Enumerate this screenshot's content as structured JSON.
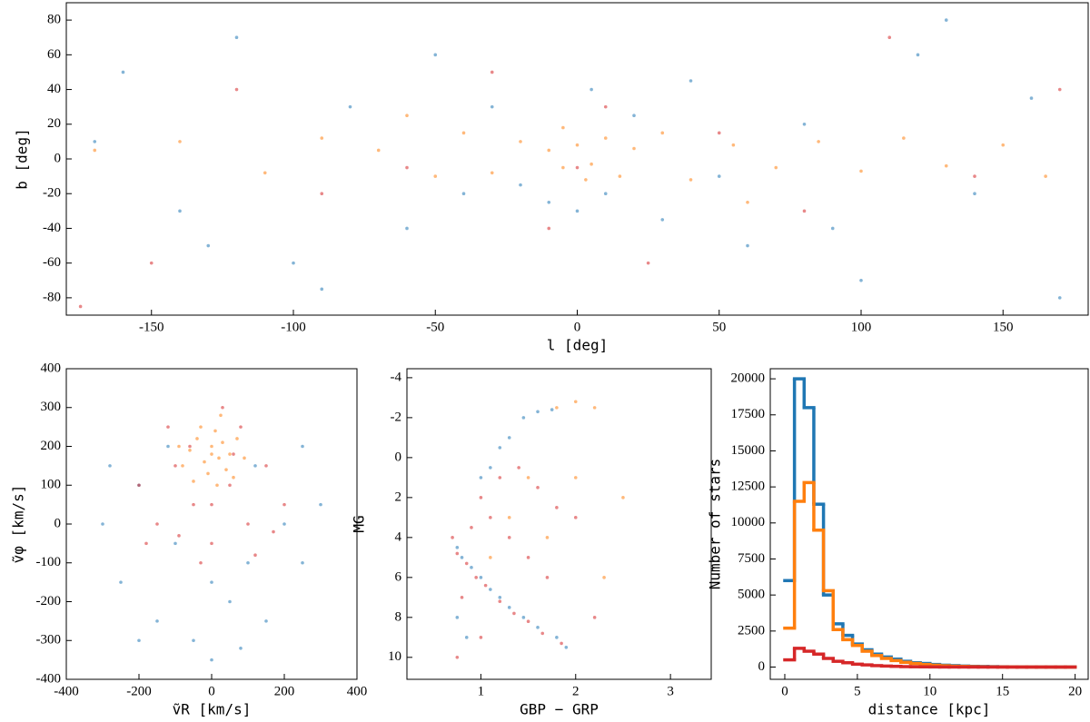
{
  "chart_data": [
    {
      "type": "scatter",
      "xlabel": "l [deg]",
      "ylabel": "b [deg]",
      "xlim": [
        -180,
        180
      ],
      "ylim": [
        -90,
        90
      ],
      "xticks": [
        -150,
        -100,
        -50,
        0,
        50,
        100,
        150
      ],
      "yticks": [
        -80,
        -60,
        -40,
        -20,
        0,
        20,
        40,
        60,
        80
      ],
      "series": [
        {
          "color": "#1f77b4",
          "x": [
            -160,
            -140,
            -120,
            -100,
            -80,
            -60,
            -40,
            -20,
            -10,
            0,
            10,
            20,
            30,
            40,
            60,
            80,
            100,
            120,
            140,
            160,
            170,
            -170,
            -50,
            50,
            -30,
            90,
            -90,
            130,
            -130,
            5
          ],
          "y": [
            50,
            -30,
            70,
            -60,
            30,
            -40,
            -20,
            -15,
            -25,
            -30,
            -20,
            25,
            -35,
            45,
            -50,
            20,
            -70,
            60,
            -20,
            35,
            -80,
            10,
            60,
            -10,
            30,
            -40,
            -75,
            80,
            -50,
            40
          ]
        },
        {
          "color": "#ff7f0e",
          "x": [
            -170,
            -140,
            -110,
            -90,
            -70,
            -50,
            -40,
            -30,
            -20,
            -10,
            -5,
            0,
            5,
            10,
            15,
            20,
            30,
            40,
            55,
            70,
            85,
            100,
            115,
            130,
            150,
            165,
            -5,
            3,
            -60,
            60
          ],
          "y": [
            5,
            10,
            -8,
            12,
            5,
            -10,
            15,
            -8,
            10,
            5,
            -5,
            8,
            -3,
            12,
            -10,
            6,
            15,
            -12,
            8,
            -5,
            10,
            -7,
            12,
            -4,
            8,
            -10,
            18,
            -12,
            25,
            -25
          ]
        },
        {
          "color": "#d62728",
          "x": [
            -150,
            -120,
            -90,
            -60,
            -30,
            -10,
            0,
            10,
            25,
            50,
            80,
            110,
            140,
            170,
            -175
          ],
          "y": [
            -60,
            40,
            -20,
            -5,
            50,
            -40,
            -5,
            30,
            -60,
            15,
            -30,
            70,
            -10,
            40,
            -85
          ]
        }
      ]
    },
    {
      "type": "scatter",
      "xlabel": "ṽR [km/s]",
      "ylabel": "ṽφ [km/s]",
      "xlim": [
        -400,
        400
      ],
      "ylim": [
        -400,
        400
      ],
      "xticks": [
        -400,
        -200,
        0,
        200,
        400
      ],
      "yticks": [
        -400,
        -300,
        -200,
        -100,
        0,
        100,
        200,
        300,
        400
      ],
      "series": [
        {
          "color": "#1f77b4",
          "x": [
            -300,
            -250,
            -200,
            -150,
            -100,
            -50,
            0,
            50,
            100,
            150,
            200,
            250,
            300,
            -200,
            0,
            120,
            -120,
            250,
            -280,
            80
          ],
          "y": [
            0,
            -150,
            100,
            -250,
            -50,
            -300,
            -150,
            -200,
            -100,
            -250,
            0,
            -100,
            50,
            -300,
            -350,
            150,
            200,
            200,
            150,
            -320
          ]
        },
        {
          "color": "#ff7f0e",
          "x": [
            -60,
            -40,
            -20,
            0,
            10,
            20,
            30,
            50,
            -10,
            40,
            -80,
            70,
            0,
            -30,
            60,
            -50,
            15,
            -90,
            90,
            25
          ],
          "y": [
            190,
            220,
            160,
            200,
            240,
            170,
            210,
            180,
            130,
            140,
            150,
            220,
            180,
            250,
            120,
            110,
            100,
            200,
            170,
            280
          ]
        },
        {
          "color": "#d62728",
          "x": [
            -200,
            -150,
            -100,
            -50,
            0,
            50,
            100,
            150,
            200,
            -120,
            80,
            -30,
            120,
            -180,
            30,
            -60,
            170,
            0,
            -90,
            60
          ],
          "y": [
            100,
            0,
            150,
            50,
            -50,
            100,
            0,
            150,
            50,
            250,
            250,
            -100,
            -80,
            -50,
            300,
            200,
            -20,
            50,
            -30,
            180
          ]
        }
      ]
    },
    {
      "type": "scatter",
      "xlabel": "GBP − GRP",
      "ylabel": "MG",
      "xlim": [
        0.22,
        3.43
      ],
      "ylim": [
        11.1,
        -4.45
      ],
      "xticks": [
        1,
        2,
        3
      ],
      "yticks": [
        -4,
        -2,
        0,
        2,
        4,
        6,
        8,
        10
      ],
      "series": [
        {
          "color": "#1f77b4",
          "x": [
            0.75,
            0.8,
            0.9,
            1.0,
            1.1,
            1.2,
            1.3,
            1.45,
            1.6,
            1.8,
            1.9,
            1.0,
            1.1,
            1.2,
            1.3,
            1.45,
            1.6,
            1.75,
            0.75,
            0.85
          ],
          "y": [
            4.5,
            5,
            5.5,
            6,
            6.6,
            7,
            7.5,
            8,
            8.5,
            9,
            9.5,
            1,
            0.5,
            -0.5,
            -1,
            -2,
            -2.3,
            -2.4,
            8,
            9
          ]
        },
        {
          "color": "#d62728",
          "x": [
            0.7,
            0.75,
            0.85,
            0.95,
            1.05,
            1.2,
            1.35,
            1.5,
            1.65,
            1.85,
            0.9,
            1.0,
            1.2,
            1.4,
            1.6,
            1.8,
            2.0,
            1.1,
            1.3,
            0.8,
            1.0,
            1.5,
            1.7,
            2.2,
            0.75
          ],
          "y": [
            4,
            4.8,
            5.3,
            6,
            6.4,
            7.2,
            7.8,
            8.2,
            8.8,
            9.3,
            3.5,
            2,
            1,
            0.5,
            1.5,
            2.5,
            3,
            3,
            4,
            7,
            9,
            5,
            6,
            8,
            10
          ]
        },
        {
          "color": "#ff7f0e",
          "x": [
            1.8,
            2.0,
            2.2,
            1.5,
            2.0,
            2.5,
            1.3,
            1.7,
            2.3,
            1.1
          ],
          "y": [
            -2.5,
            -2.8,
            -2.5,
            1,
            1,
            2,
            3,
            4,
            6,
            5
          ]
        }
      ]
    },
    {
      "type": "histogram",
      "xlabel": "distance [kpc]",
      "ylabel": "Number of stars",
      "xlim": [
        -1,
        20.9
      ],
      "ylim": [
        -850,
        20700
      ],
      "xticks": [
        0,
        5,
        10,
        15,
        20
      ],
      "yticks": [
        0,
        2500,
        5000,
        7500,
        10000,
        12500,
        15000,
        17500,
        20000
      ],
      "bins": [
        0,
        0.667,
        1.333,
        2,
        2.667,
        3.333,
        4,
        4.667,
        5.333,
        6,
        6.667,
        7.333,
        8,
        8.667,
        9.333,
        10,
        10.667,
        11.333,
        12,
        12.667,
        13.333,
        14,
        14.667,
        15.333,
        16,
        16.667,
        17.333,
        18,
        18.667,
        19.333,
        20
      ],
      "series": [
        {
          "color": "#1f77b4",
          "values": [
            6000,
            20000,
            18000,
            11300,
            5000,
            3000,
            2200,
            1600,
            1200,
            900,
            700,
            550,
            400,
            300,
            250,
            180,
            130,
            100,
            70,
            50,
            40,
            30,
            20,
            15,
            10,
            8,
            5,
            4,
            3,
            2
          ]
        },
        {
          "color": "#ff7f0e",
          "values": [
            2700,
            11500,
            12800,
            9500,
            5300,
            2600,
            1900,
            1500,
            1100,
            800,
            600,
            450,
            330,
            250,
            180,
            130,
            90,
            60,
            45,
            30,
            20,
            15,
            10,
            8,
            5,
            4,
            3,
            2,
            1,
            1
          ]
        },
        {
          "color": "#d62728",
          "values": [
            500,
            1300,
            1100,
            900,
            600,
            400,
            300,
            200,
            150,
            100,
            70,
            50,
            30,
            20,
            15,
            10,
            5,
            4,
            3,
            2,
            1,
            1,
            0,
            0,
            0,
            0,
            0,
            0,
            0,
            0
          ]
        }
      ]
    }
  ]
}
